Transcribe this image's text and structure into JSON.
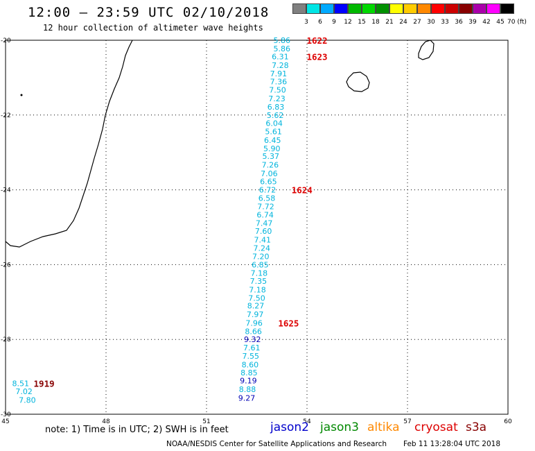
{
  "header": {
    "title": "12:00 – 23:59 UTC 02/10/2018",
    "subtitle": "12 hour collection of altimeter wave heights"
  },
  "scale": {
    "labels": [
      "3",
      "6",
      "9",
      "12",
      "15",
      "18",
      "21",
      "24",
      "27",
      "30",
      "33",
      "36",
      "39",
      "42",
      "45",
      "70 (ft)"
    ],
    "colors": [
      "#808080",
      "#00e5e5",
      "#00aaff",
      "#0000ff",
      "#00b800",
      "#00d800",
      "#009000",
      "#ffff00",
      "#ffcc00",
      "#ff8800",
      "#ff0000",
      "#cc0000",
      "#880000",
      "#aa00aa",
      "#ff00ff",
      "#000000"
    ]
  },
  "map": {
    "lon_range": [
      45,
      60
    ],
    "lat_range": [
      -30,
      -20
    ],
    "lon_ticks": [
      "45",
      "48",
      "51",
      "54",
      "57",
      "60"
    ],
    "lat_ticks": [
      "-20",
      "-22",
      "-24",
      "-26",
      "-28",
      "-30"
    ],
    "colors": {
      "cyan": "#00b4dc",
      "blue": "#0000b4",
      "red": "#dd0000",
      "darkred": "#880000"
    },
    "measurements": [
      {
        "value": "5.86",
        "lon": 53.25,
        "lat": -20.0,
        "c": "cyan"
      },
      {
        "value": "5.86",
        "lon": 53.25,
        "lat": -20.22,
        "c": "cyan"
      },
      {
        "value": "6.31",
        "lon": 53.2,
        "lat": -20.44,
        "c": "cyan"
      },
      {
        "value": "7.28",
        "lon": 53.2,
        "lat": -20.67,
        "c": "cyan"
      },
      {
        "value": "7.91",
        "lon": 53.15,
        "lat": -20.89,
        "c": "cyan"
      },
      {
        "value": "7.36",
        "lon": 53.15,
        "lat": -21.1,
        "c": "cyan"
      },
      {
        "value": "7.50",
        "lon": 53.12,
        "lat": -21.33,
        "c": "cyan"
      },
      {
        "value": "7.23",
        "lon": 53.1,
        "lat": -21.56,
        "c": "cyan"
      },
      {
        "value": "6.83",
        "lon": 53.07,
        "lat": -21.78,
        "c": "cyan"
      },
      {
        "value": "5.62",
        "lon": 53.05,
        "lat": -22.0,
        "c": "cyan"
      },
      {
        "value": "6.04",
        "lon": 53.02,
        "lat": -22.22,
        "c": "cyan"
      },
      {
        "value": "5.61",
        "lon": 53.0,
        "lat": -22.44,
        "c": "cyan"
      },
      {
        "value": "6.45",
        "lon": 52.97,
        "lat": -22.67,
        "c": "cyan"
      },
      {
        "value": "5.90",
        "lon": 52.95,
        "lat": -22.89,
        "c": "cyan"
      },
      {
        "value": "5.37",
        "lon": 52.92,
        "lat": -23.1,
        "c": "cyan"
      },
      {
        "value": "7.26",
        "lon": 52.9,
        "lat": -23.33,
        "c": "cyan"
      },
      {
        "value": "7.06",
        "lon": 52.87,
        "lat": -23.56,
        "c": "cyan"
      },
      {
        "value": "6.65",
        "lon": 52.85,
        "lat": -23.78,
        "c": "cyan"
      },
      {
        "value": "6.72",
        "lon": 52.82,
        "lat": -24.0,
        "c": "cyan"
      },
      {
        "value": "6.58",
        "lon": 52.8,
        "lat": -24.22,
        "c": "cyan"
      },
      {
        "value": "7.72",
        "lon": 52.77,
        "lat": -24.44,
        "c": "cyan"
      },
      {
        "value": "6.74",
        "lon": 52.75,
        "lat": -24.67,
        "c": "cyan"
      },
      {
        "value": "7.47",
        "lon": 52.72,
        "lat": -24.89,
        "c": "cyan"
      },
      {
        "value": "7.60",
        "lon": 52.7,
        "lat": -25.1,
        "c": "cyan"
      },
      {
        "value": "7.41",
        "lon": 52.67,
        "lat": -25.33,
        "c": "cyan"
      },
      {
        "value": "7.24",
        "lon": 52.65,
        "lat": -25.56,
        "c": "cyan"
      },
      {
        "value": "7.20",
        "lon": 52.62,
        "lat": -25.78,
        "c": "cyan"
      },
      {
        "value": "6.85",
        "lon": 52.6,
        "lat": -26.0,
        "c": "cyan"
      },
      {
        "value": "7.18",
        "lon": 52.57,
        "lat": -26.22,
        "c": "cyan"
      },
      {
        "value": "7.35",
        "lon": 52.55,
        "lat": -26.44,
        "c": "cyan"
      },
      {
        "value": "7.18",
        "lon": 52.52,
        "lat": -26.67,
        "c": "cyan"
      },
      {
        "value": "7.50",
        "lon": 52.5,
        "lat": -26.89,
        "c": "cyan"
      },
      {
        "value": "8.27",
        "lon": 52.47,
        "lat": -27.1,
        "c": "cyan"
      },
      {
        "value": "7.97",
        "lon": 52.45,
        "lat": -27.33,
        "c": "cyan"
      },
      {
        "value": "7.96",
        "lon": 52.42,
        "lat": -27.56,
        "c": "cyan"
      },
      {
        "value": "8.66",
        "lon": 52.4,
        "lat": -27.78,
        "c": "cyan"
      },
      {
        "value": "9.32",
        "lon": 52.37,
        "lat": -28.0,
        "c": "blue"
      },
      {
        "value": "7.61",
        "lon": 52.35,
        "lat": -28.22,
        "c": "cyan"
      },
      {
        "value": "7.55",
        "lon": 52.32,
        "lat": -28.44,
        "c": "cyan"
      },
      {
        "value": "8.60",
        "lon": 52.3,
        "lat": -28.67,
        "c": "cyan"
      },
      {
        "value": "8.85",
        "lon": 52.27,
        "lat": -28.89,
        "c": "cyan"
      },
      {
        "value": "9.19",
        "lon": 52.25,
        "lat": -29.1,
        "c": "blue"
      },
      {
        "value": "8.88",
        "lon": 52.22,
        "lat": -29.33,
        "c": "cyan"
      },
      {
        "value": "9.27",
        "lon": 52.2,
        "lat": -29.56,
        "c": "blue"
      },
      {
        "value": "8.51",
        "lon": 45.45,
        "lat": -29.17,
        "c": "cyan"
      },
      {
        "value": "7.02",
        "lon": 45.55,
        "lat": -29.39,
        "c": "cyan"
      },
      {
        "value": "7.80",
        "lon": 45.65,
        "lat": -29.62,
        "c": "cyan"
      }
    ],
    "time_labels": [
      {
        "value": "1622",
        "lon": 54.3,
        "lat": -20.0,
        "c": "red"
      },
      {
        "value": "1623",
        "lon": 54.3,
        "lat": -20.44,
        "c": "red"
      },
      {
        "value": "1624",
        "lon": 53.85,
        "lat": -24.0,
        "c": "red"
      },
      {
        "value": "1625",
        "lon": 53.45,
        "lat": -27.56,
        "c": "red"
      },
      {
        "value": "1919",
        "lon": 46.15,
        "lat": -29.17,
        "c": "darkred"
      }
    ]
  },
  "note": "note:  1) Time is in UTC;  2) SWH is in feet",
  "legend": [
    {
      "label": "jason2",
      "color": "#0000cc"
    },
    {
      "label": "jason3",
      "color": "#008800"
    },
    {
      "label": "altika",
      "color": "#ff8800"
    },
    {
      "label": "cryosat",
      "color": "#dd0000"
    },
    {
      "label": "s3a",
      "color": "#880000"
    }
  ],
  "footer": {
    "credit": "NOAA/NESDIS Center for Satellite Applications and Research",
    "timestamp": "Feb 11 13:28:04 UTC 2018"
  }
}
